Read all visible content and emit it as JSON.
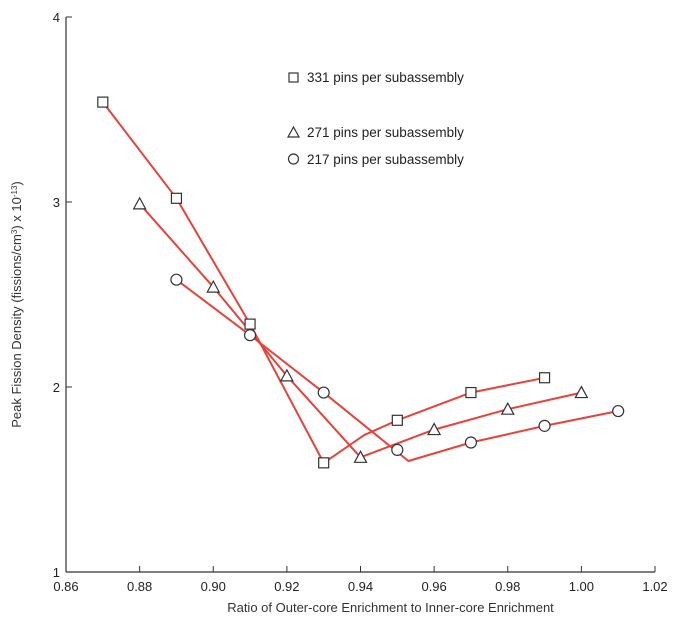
{
  "chart_data": {
    "type": "line",
    "title": "",
    "xlabel": "Ratio of Outer-core Enrichment to Inner-core Enrichment",
    "ylabel": "Peak Fission Density (fissions/cm",
    "ylabel_sup": "3",
    "ylabel_tail": ") x 10",
    "ylabel_exp": "-13",
    "ylabel_close": ")",
    "xlim": [
      0.86,
      1.02
    ],
    "ylim": [
      1,
      4
    ],
    "x_ticks": [
      0.86,
      0.88,
      0.9,
      0.92,
      0.94,
      0.96,
      0.98,
      1.0,
      1.02
    ],
    "x_tick_labels": [
      "0.86",
      "0.88",
      "0.90",
      "0.92",
      "0.94",
      "0.96",
      "0.98",
      "1.00",
      "1.02"
    ],
    "y_ticks": [
      1,
      2,
      3,
      4
    ],
    "y_tick_labels": [
      "1",
      "2",
      "3",
      "4"
    ],
    "grid": false,
    "legend_position": "top-right",
    "line_color": "#e8423a",
    "series": [
      {
        "name": "331 pins per subassembly",
        "marker": "square",
        "x": [
          0.87,
          0.89,
          0.91,
          0.93,
          0.95,
          0.97,
          0.99
        ],
        "y": [
          3.54,
          3.02,
          2.34,
          1.59,
          1.82,
          1.97,
          2.05
        ],
        "curve": [
          [
            0.87,
            3.54
          ],
          [
            0.89,
            3.02
          ],
          [
            0.91,
            2.34
          ],
          [
            0.93,
            1.59
          ],
          [
            0.941,
            1.74
          ],
          [
            0.95,
            1.82
          ],
          [
            0.97,
            1.97
          ],
          [
            0.99,
            2.05
          ]
        ]
      },
      {
        "name": "271 pins per subassembly",
        "marker": "triangle",
        "x": [
          0.88,
          0.9,
          0.92,
          0.94,
          0.96,
          0.98,
          1.0
        ],
        "y": [
          2.99,
          2.54,
          2.06,
          1.62,
          1.77,
          1.88,
          1.97
        ],
        "curve": [
          [
            0.88,
            2.99
          ],
          [
            0.9,
            2.54
          ],
          [
            0.92,
            2.06
          ],
          [
            0.94,
            1.62
          ],
          [
            0.96,
            1.77
          ],
          [
            0.98,
            1.88
          ],
          [
            1.0,
            1.97
          ]
        ]
      },
      {
        "name": "217 pins per subassembly",
        "marker": "circle",
        "x": [
          0.89,
          0.91,
          0.93,
          0.95,
          0.97,
          0.99,
          1.01
        ],
        "y": [
          2.58,
          2.28,
          1.97,
          1.66,
          1.7,
          1.79,
          1.87
        ],
        "curve": [
          [
            0.89,
            2.58
          ],
          [
            0.91,
            2.28
          ],
          [
            0.93,
            1.97
          ],
          [
            0.953,
            1.6
          ],
          [
            0.97,
            1.7
          ],
          [
            0.99,
            1.79
          ],
          [
            1.01,
            1.87
          ]
        ]
      }
    ]
  }
}
